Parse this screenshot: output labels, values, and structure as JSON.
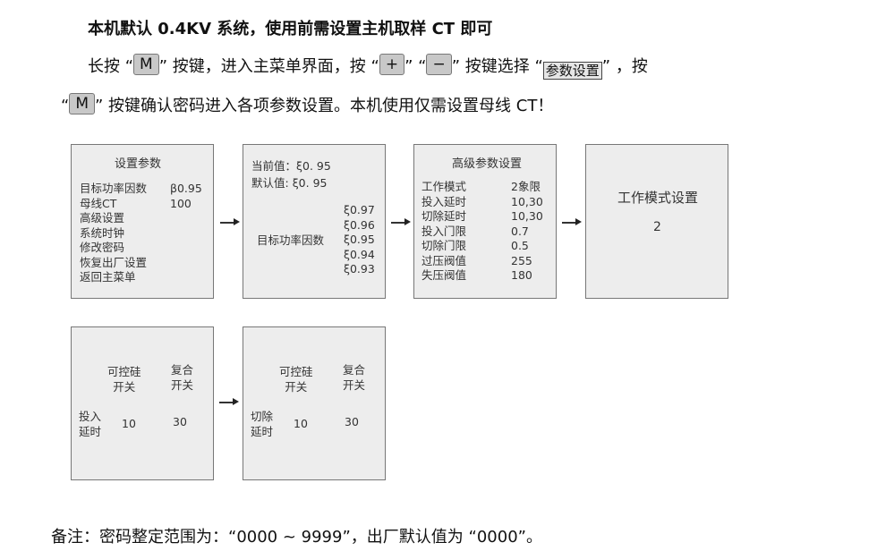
{
  "title": "本机默认 0.4KV 系统，使用前需设置主机取样 CT 即可",
  "instructions": {
    "p1": "长按 “",
    "key_m": "M",
    "p2": "” 按键，进入主菜单界面，按 “",
    "key_plus": "+",
    "p3": "”  “",
    "key_minus": "−",
    "p4": "” 按键选择 “",
    "menu_item": "参数设置",
    "p5": "” ，按",
    "p6": "“",
    "p7": "” 按键确认密码进入各项参数设置。本机使用仅需设置母线 CT！"
  },
  "screens": {
    "settings": {
      "title": "设置参数",
      "items": [
        "目标功率因数",
        "母线CT",
        "高级设置",
        "系统时钟",
        "修改密码",
        "恢复出厂设置",
        "返回主菜单"
      ],
      "values": [
        "β0.95",
        "100"
      ]
    },
    "pf": {
      "current_label": "当前值：",
      "current_value": "ξ0. 95",
      "default_label": "默认值:",
      "default_value": "ξ0. 95",
      "label": "目标功率因数",
      "options": [
        "ξ0.97",
        "ξ0.96",
        "ξ0.95",
        "ξ0.94",
        "ξ0.93"
      ]
    },
    "advanced": {
      "title": "高级参数设置",
      "items": [
        "工作模式",
        "投入延时",
        "切除延时",
        "投入门限",
        "切除门限",
        "过压阀值",
        "失压阀值"
      ],
      "values": [
        "2象限",
        "10,30",
        "10,30",
        "0.7",
        "0.5",
        "255",
        "180"
      ]
    },
    "mode": {
      "title": "工作模式设置",
      "value": "2"
    },
    "on_delay": {
      "col1": "可控硅\n开关",
      "col1a": "可控硅",
      "col1b": "开关",
      "col2a": "复合",
      "col2b": "开关",
      "row_a": "投入",
      "row_b": "延时",
      "v1": "10",
      "v2": "30"
    },
    "off_delay": {
      "col1a": "可控硅",
      "col1b": "开关",
      "col2a": "复合",
      "col2b": "开关",
      "row_a": "切除",
      "row_b": "延时",
      "v1": "10",
      "v2": "30"
    }
  },
  "note": "备注：密码整定范围为：“0000 ~ 9999”，出厂默认值为 “0000”。"
}
